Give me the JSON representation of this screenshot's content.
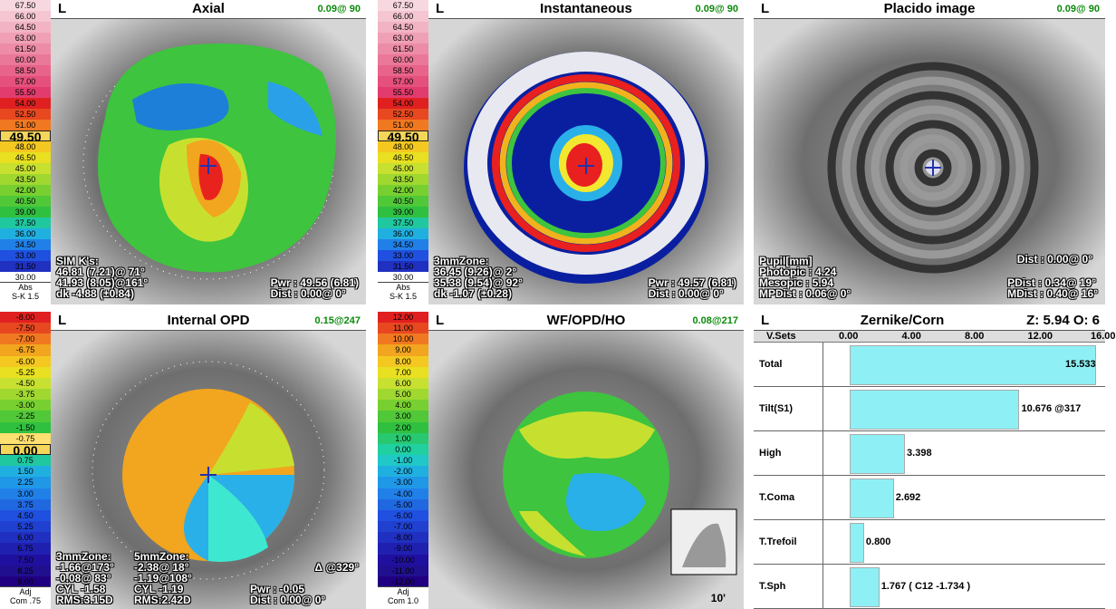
{
  "scales": {
    "axial": {
      "values": [
        "67.50",
        "66.00",
        "64.50",
        "63.00",
        "61.50",
        "60.00",
        "58.50",
        "57.00",
        "55.50",
        "54.00",
        "52.50",
        "51.00",
        "49.50",
        "48.00",
        "46.50",
        "45.00",
        "43.50",
        "42.00",
        "40.50",
        "39.00",
        "37.50",
        "36.00",
        "34.50",
        "33.00",
        "31.50",
        "30.00"
      ],
      "highlight": "49.50",
      "footer1": "Abs",
      "footer2": "S-K 1.5"
    },
    "inst": {
      "values": [
        "67.50",
        "66.00",
        "64.50",
        "63.00",
        "61.50",
        "60.00",
        "58.50",
        "57.00",
        "55.50",
        "54.00",
        "52.50",
        "51.00",
        "49.50",
        "48.00",
        "46.50",
        "45.00",
        "43.50",
        "42.00",
        "40.50",
        "39.00",
        "37.50",
        "36.00",
        "34.50",
        "33.00",
        "31.50",
        "30.00"
      ],
      "highlight": "49.50",
      "footer1": "Abs",
      "footer2": "S-K 1.5"
    },
    "opd": {
      "values": [
        "-8.00",
        "-7.50",
        "-7.00",
        "-6.75",
        "-6.00",
        "-5.25",
        "-4.50",
        "-3.75",
        "-3.00",
        "-2.25",
        "-1.50",
        "-0.75",
        "0.00",
        "0.75",
        "1.50",
        "2.25",
        "3.00",
        "3.75",
        "4.50",
        "5.25",
        "6.00",
        "6.75",
        "7.50",
        "8.25",
        "9.00"
      ],
      "highlight": "0.00",
      "footer1": "Adj",
      "footer2": "Com .75"
    },
    "wf": {
      "values": [
        "12.00",
        "11.00",
        "10.00",
        "9.00",
        "8.00",
        "7.00",
        "6.00",
        "5.00",
        "4.00",
        "3.00",
        "2.00",
        "1.00",
        "0.00",
        "-1.00",
        "-2.00",
        "-3.00",
        "-4.00",
        "-5.00",
        "-6.00",
        "-7.00",
        "-8.00",
        "-9.00",
        "-10.00",
        "-11.00",
        "-12.00"
      ],
      "highlight": "",
      "footer1": "Adj",
      "footer2": "Com 1.0"
    }
  },
  "panels": {
    "axial": {
      "eye": "L",
      "title": "Axial",
      "corner": "0.09@ 90",
      "bl": "SIM K's:\n46.81 (7.21)@ 71°\n41.93 (8.05)@161°\ndk -4.88 (±0.84)",
      "br": "Pwr : 49.56 (6.81)\nDist : 0.00@ 0°"
    },
    "inst": {
      "eye": "L",
      "title": "Instantaneous",
      "corner": "0.09@ 90",
      "bl": "3mmZone:\n36.45 (9.26)@ 2°\n35.38 (9.54)@ 92°\ndk -1.07 (±0.28)",
      "br": "Pwr : 49.57 (6.81)\nDist : 0.00@ 0°"
    },
    "placido": {
      "eye": "L",
      "title": "Placido image",
      "corner": "0.09@ 90",
      "bl": "Pupil[mm]\nPhotopic : 4.24\nMesopic : 5.94\nMPDist : 0.06@ 0°",
      "br": "PDist : 0.34@ 19°\nMDist : 0.40@ 16°",
      "dist": "Dist : 0.00@ 0°"
    },
    "opd": {
      "eye": "L",
      "title": "Internal OPD",
      "corner": "0.15@247",
      "bl": "3mmZone:\n-1.66@173°\n-0.08@ 83°\nCYL -1.58\nRMS:3.15D",
      "bl2": "5mmZone:\n-2.38@ 18°\n-1.19@108°\nCYL -1.19\nRMS:2.42D",
      "br": "Pwr : -0.05\nDist : 0.00@ 0°",
      "delta": "Δ @329°"
    },
    "wf": {
      "eye": "L",
      "title": "WF/OPD/HO",
      "corner": "0.08@217",
      "inset": "10'"
    }
  },
  "zernike": {
    "eye": "L",
    "title": "Zernike/Corn",
    "corner": "Z: 5.94 O: 6",
    "col_header": "V.Sets",
    "ticks": [
      "0.00",
      "4.00",
      "8.00",
      "12.00",
      "16.00"
    ],
    "rows": [
      {
        "label": "Total",
        "value": 15.533,
        "text": "15.533"
      },
      {
        "label": "Tilt(S1)",
        "value": 10.676,
        "text": "10.676 @317"
      },
      {
        "label": "High",
        "value": 3.398,
        "text": "3.398"
      },
      {
        "label": "T.Coma",
        "value": 2.692,
        "text": "2.692"
      },
      {
        "label": "T.Trefoil",
        "value": 0.8,
        "text": "0.800"
      },
      {
        "label": "T.Sph",
        "value": 1.767,
        "text": "1.767 ( C12 -1.734 )"
      }
    ]
  }
}
